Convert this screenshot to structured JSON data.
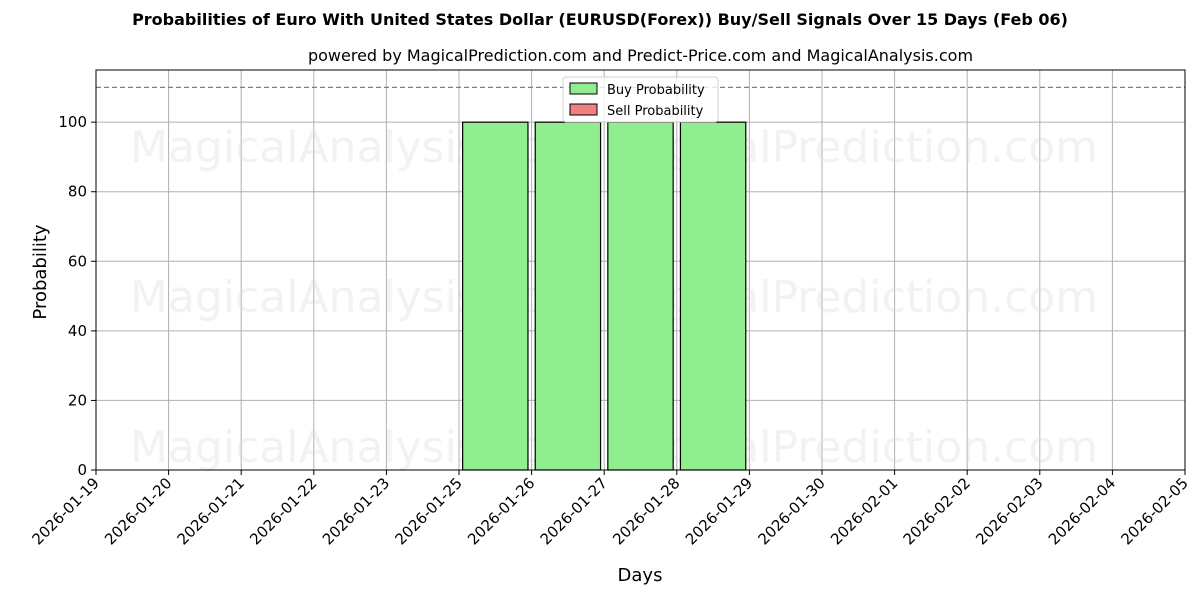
{
  "chart_data": {
    "type": "bar",
    "title": "Probabilities of Euro With United States Dollar (EURUSD(Forex)) Buy/Sell Signals Over 15 Days (Feb 06)",
    "subtitle": "powered by MagicalPrediction.com and Predict-Price.com and MagicalAnalysis.com",
    "xlabel": "Days",
    "ylabel": "Probability",
    "ylim": [
      0,
      115
    ],
    "yticks": [
      0,
      20,
      40,
      60,
      80,
      100
    ],
    "reference_line": 110,
    "grid": true,
    "legend_position": "upper center",
    "categories": [
      "2026-01-19",
      "2026-01-20",
      "2026-01-21",
      "2026-01-22",
      "2026-01-23",
      "2026-01-25",
      "2026-01-26",
      "2026-01-27",
      "2026-01-28",
      "2026-01-29",
      "2026-01-30",
      "2026-02-01",
      "2026-02-02",
      "2026-02-03",
      "2026-02-04",
      "2026-02-05"
    ],
    "series": [
      {
        "name": "Buy Probability",
        "color": "#90ee90",
        "values": [
          0,
          0,
          0,
          0,
          0,
          0,
          100,
          100,
          100,
          100,
          0,
          0,
          0,
          0,
          0,
          0
        ]
      },
      {
        "name": "Sell Probability",
        "color": "#f08080",
        "values": [
          0,
          0,
          0,
          0,
          0,
          0,
          0,
          0,
          0,
          0,
          0,
          0,
          0,
          0,
          0,
          0
        ]
      }
    ]
  },
  "watermarks": [
    "MagicalAnalysis.com",
    "MagicalPrediction.com"
  ]
}
